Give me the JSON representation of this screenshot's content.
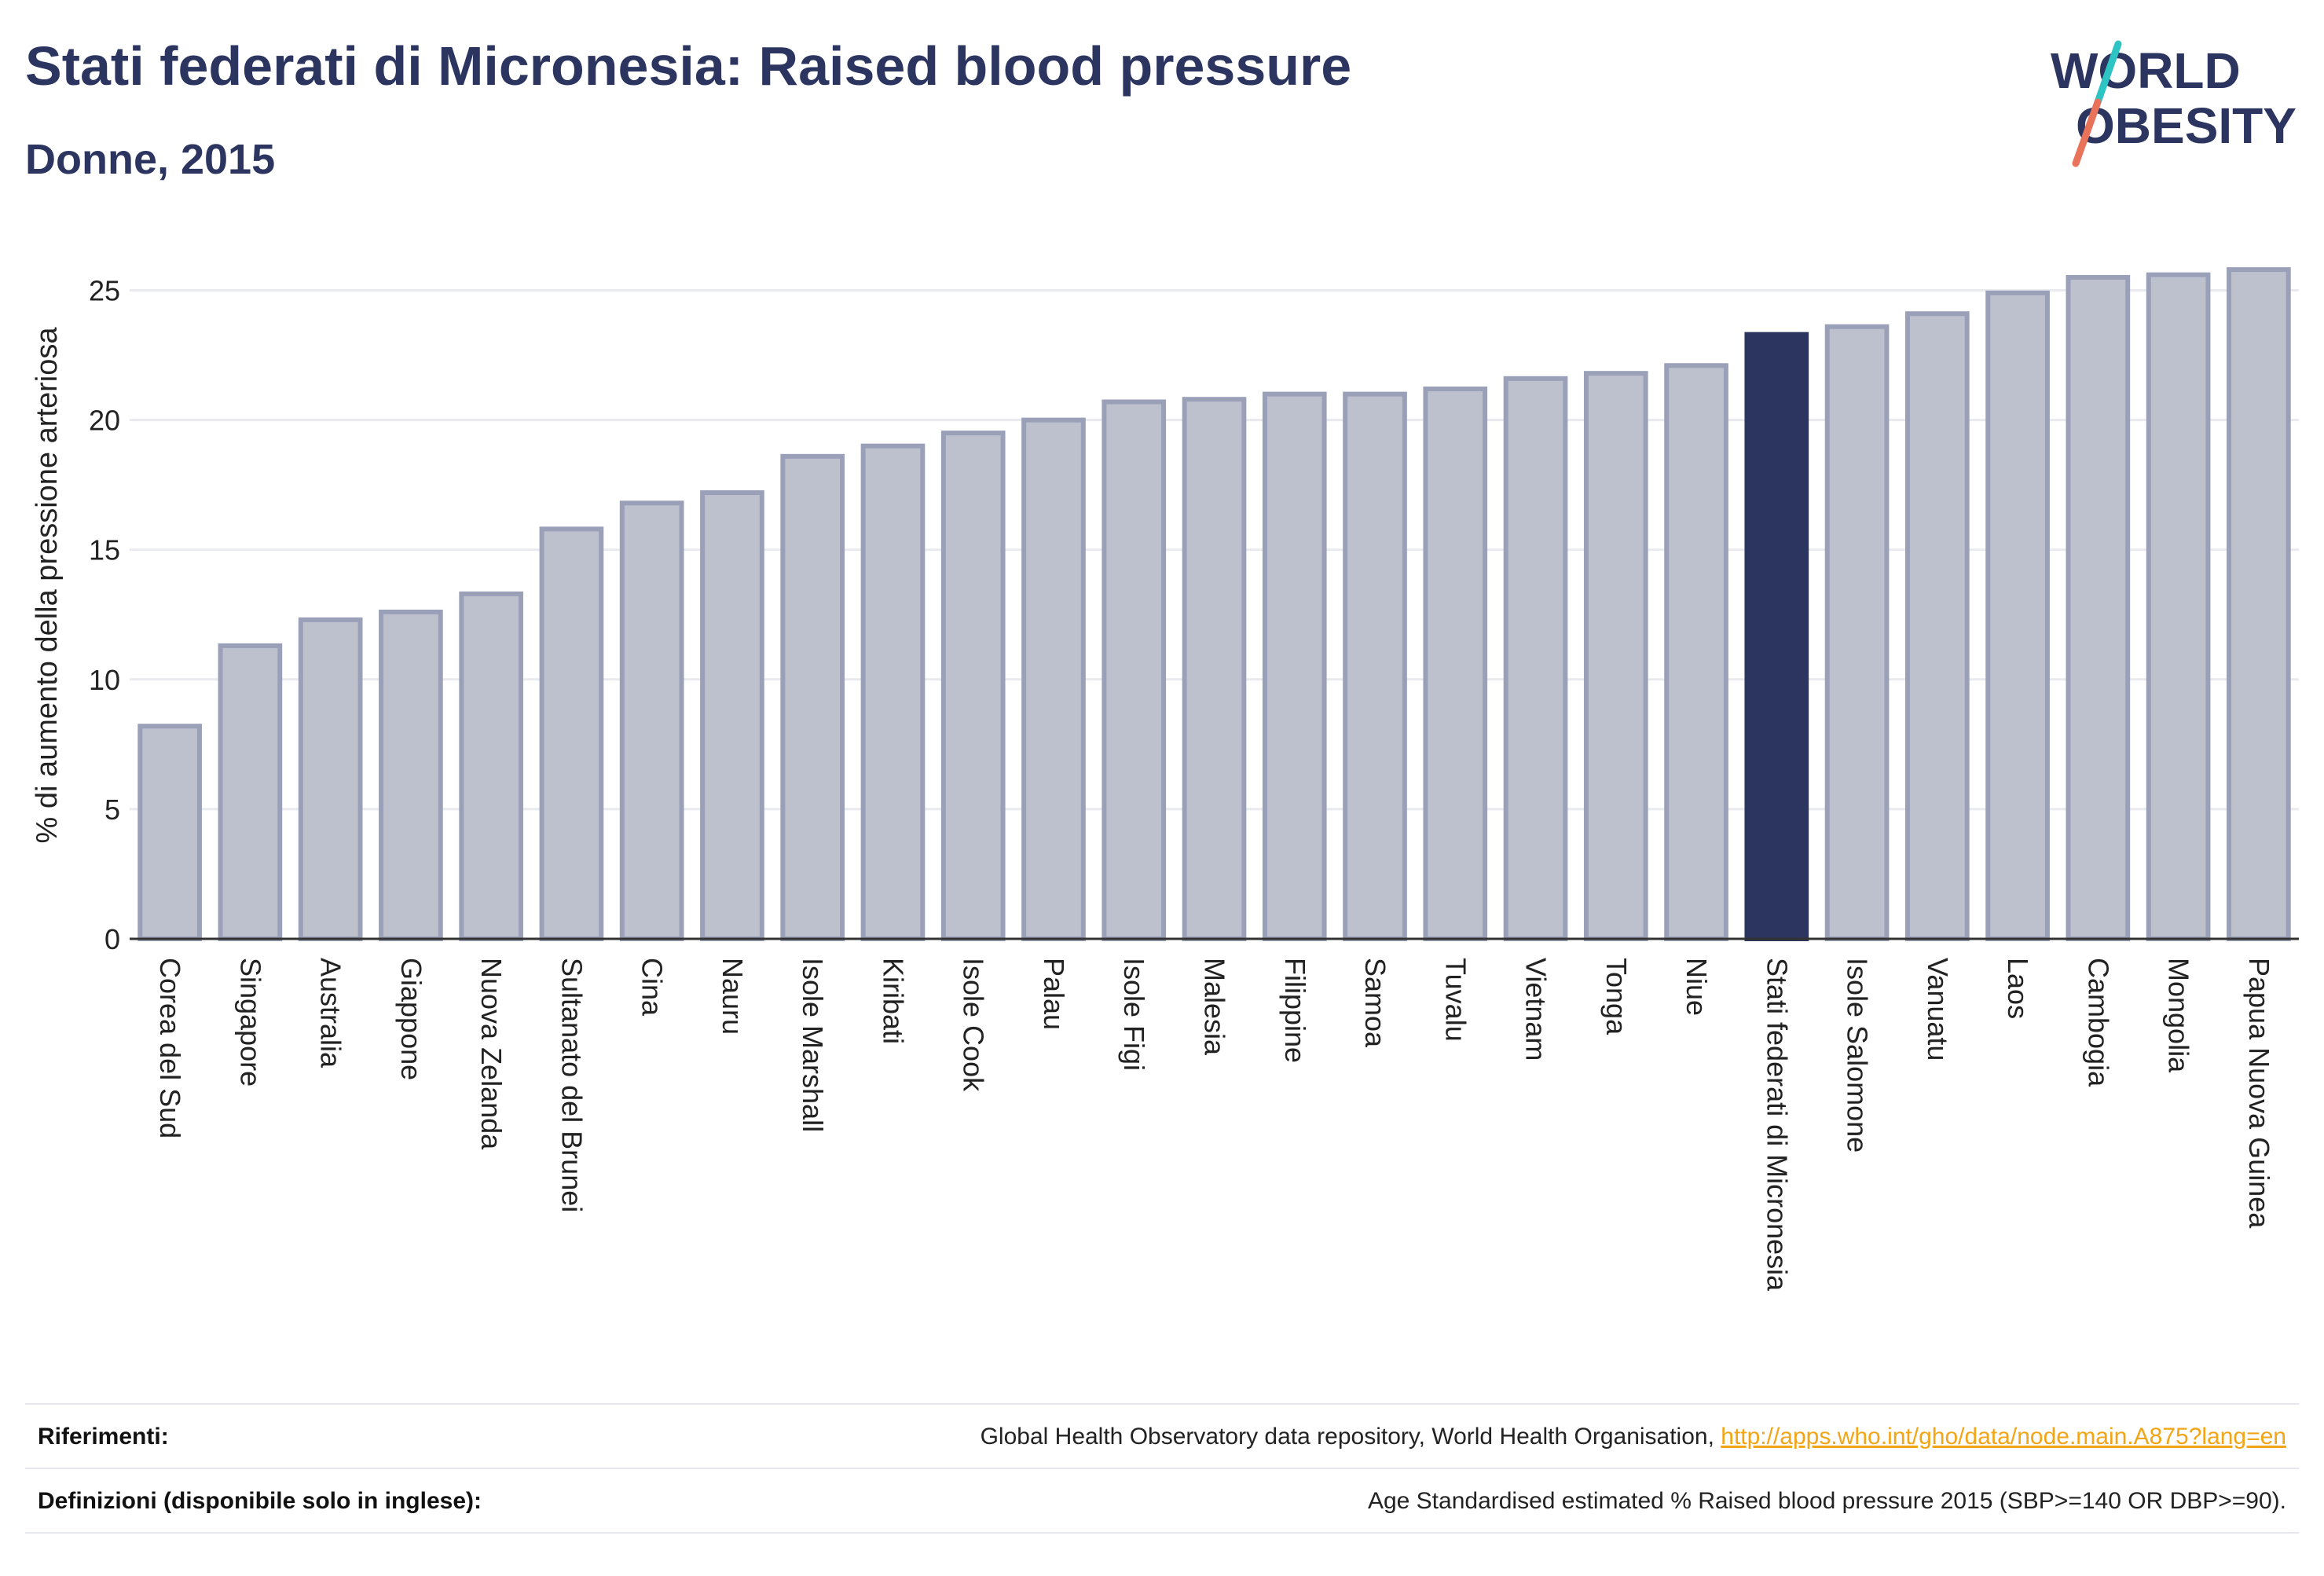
{
  "header": {
    "title": "Stati federati di Micronesia: Raised blood pressure",
    "subtitle": "Donne, 2015"
  },
  "logo": {
    "line1": "WORLD",
    "line2": "OBESITY",
    "colors": {
      "text": "#2b3560",
      "slash_top": "#2ec4c4",
      "slash_bottom": "#e8725a"
    }
  },
  "colors": {
    "bar": "#bdc1ce",
    "bar_border": "#9aa0b8",
    "highlight": "#2b3560",
    "grid": "#e9eaee",
    "axis": "#333333"
  },
  "chart_data": {
    "type": "bar",
    "ylabel": "% di aumento della pressione arteriosa",
    "xlabel": "",
    "ylim": [
      0,
      26.5
    ],
    "yticks": [
      0,
      5,
      10,
      15,
      20,
      25
    ],
    "grid": true,
    "highlight": "Stati federati di Micronesia",
    "categories": [
      "Corea del Sud",
      "Singapore",
      "Australia",
      "Giappone",
      "Nuova Zelanda",
      "Sultanato del Brunei",
      "Cina",
      "Nauru",
      "Isole Marshall",
      "Kiribati",
      "Isole Cook",
      "Palau",
      "Isole Figi",
      "Malesia",
      "Filippine",
      "Samoa",
      "Tuvalu",
      "Vietnam",
      "Tonga",
      "Niue",
      "Stati federati di Micronesia",
      "Isole Salomone",
      "Vanuatu",
      "Laos",
      "Cambogia",
      "Mongolia",
      "Papua Nuova Guinea"
    ],
    "values": [
      8.2,
      11.3,
      12.3,
      12.6,
      13.3,
      15.8,
      16.8,
      17.2,
      18.6,
      19.0,
      19.5,
      20.0,
      20.7,
      20.8,
      21.0,
      21.0,
      21.2,
      21.6,
      21.8,
      22.1,
      23.3,
      23.6,
      24.1,
      24.9,
      25.5,
      25.6,
      25.8
    ]
  },
  "footer": {
    "references_label": "Riferimenti:",
    "references_text": "Global Health Observatory data repository, World Health Organisation, ",
    "references_link": "http://apps.who.int/gho/data/node.main.A875?lang=en",
    "definitions_label": "Definizioni (disponibile solo in inglese):",
    "definitions_text": "Age Standardised estimated % Raised blood pressure 2015 (SBP>=140 OR DBP>=90)."
  }
}
